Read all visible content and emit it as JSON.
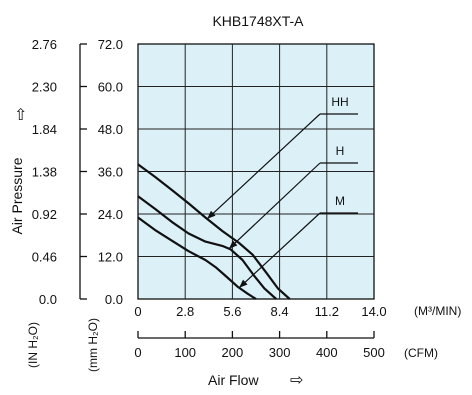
{
  "chart_data": {
    "type": "line",
    "title": "KHB1748XT-A",
    "y_axis_label": "Air Pressure",
    "y_axis_arrow": "⇧",
    "x_axis_label": "Air Flow",
    "x_axis_arrow": "⇨",
    "y_left_unit": "(IN H₂O)",
    "y_right_unit": "(mm H₂O)",
    "x_top_unit": "(M³/MIN)",
    "x_bottom_unit": "(CFM)",
    "y_ticks_inH2O": [
      "0.0",
      "0.46",
      "0.92",
      "1.38",
      "1.84",
      "2.30",
      "2.76"
    ],
    "y_ticks_mmH2O": [
      "0.0",
      "12.0",
      "24.0",
      "36.0",
      "48.0",
      "60.0",
      "72.0"
    ],
    "x_ticks_m3min": [
      "0",
      "2.8",
      "5.6",
      "8.4",
      "11.2",
      "14.0"
    ],
    "x_ticks_cfm": [
      "0",
      "100",
      "200",
      "300",
      "400",
      "500"
    ],
    "xlim_m3min": [
      0,
      14
    ],
    "ylim_mmH2O": [
      0,
      72
    ],
    "grid": true,
    "plot_background": "#dcf0f8",
    "series": [
      {
        "name": "HH",
        "x": [
          0,
          1.0,
          2.0,
          3.0,
          4.0,
          5.0,
          6.0,
          6.8,
          7.6,
          8.3,
          9.0
        ],
        "y": [
          38.0,
          34.5,
          30.8,
          27.0,
          23.0,
          19.2,
          15.8,
          12.5,
          7.5,
          3.0,
          0
        ]
      },
      {
        "name": "H",
        "x": [
          0,
          1.0,
          2.0,
          3.0,
          4.0,
          5.0,
          5.5,
          6.2,
          6.9,
          7.5,
          8.2
        ],
        "y": [
          29.0,
          25.5,
          21.8,
          18.5,
          16.2,
          15.0,
          14.0,
          11.0,
          6.5,
          3.0,
          0
        ]
      },
      {
        "name": "M",
        "x": [
          0,
          1.0,
          2.0,
          3.0,
          4.0,
          4.6,
          5.2,
          5.9,
          6.5,
          7.0
        ],
        "y": [
          23.0,
          19.5,
          16.5,
          13.5,
          11.0,
          9.0,
          6.5,
          3.5,
          1.5,
          0
        ]
      }
    ]
  }
}
